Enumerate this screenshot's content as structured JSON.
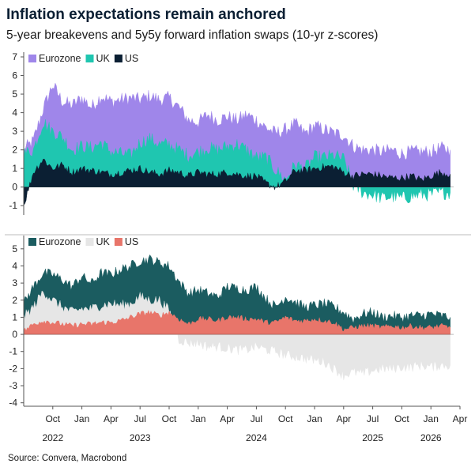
{
  "title": "Inflation expectations remain anchored",
  "subtitle": "5-year breakevens and 5y5y forward inflation swaps (10-yr z-scores)",
  "source": "Source: Convera, Macrobond",
  "colors": {
    "eurozone_top": "#9f86ea",
    "uk_top": "#1fc6b0",
    "us_top": "#0b1f33",
    "eurozone_bottom": "#1b5c60",
    "uk_bottom": "#e6e6e6",
    "us_bottom": "#e8756a",
    "axis": "#555555",
    "divider": "#bdbdbd"
  },
  "x_axis": {
    "month_ticks": [
      "Oct",
      "Jan",
      "Apr",
      "Jul",
      "Oct",
      "Jan",
      "Apr",
      "Jul",
      "Oct",
      "Jan",
      "Apr",
      "Jul",
      "Oct",
      "Jan",
      "Apr"
    ],
    "month_tick_dates": [
      "2022-10",
      "2023-01",
      "2023-04",
      "2023-07",
      "2023-10",
      "2024-01",
      "2024-04",
      "2024-07",
      "2024-10",
      "2025-01",
      "2025-04",
      "2025-07",
      "2025-10",
      "2026-01",
      "2026-04"
    ],
    "year_labels": [
      "2022",
      "2023",
      "2024",
      "2025",
      "2026"
    ],
    "year_label_dates": [
      "2022-10",
      "2023-07",
      "2024-07",
      "2025-07",
      "2026-01"
    ],
    "range": [
      "2022-07",
      "2026-04"
    ]
  },
  "chart_data": [
    {
      "type": "area",
      "panel": "top",
      "ylim": [
        -1.5,
        7
      ],
      "yticks": [
        -1,
        0,
        1,
        2,
        3,
        4,
        5,
        6,
        7
      ],
      "legend_placement": "top-left",
      "x": [
        "2022-07",
        "2022-08",
        "2022-09",
        "2022-10",
        "2022-11",
        "2022-12",
        "2023-01",
        "2023-02",
        "2023-03",
        "2023-04",
        "2023-05",
        "2023-06",
        "2023-07",
        "2023-08",
        "2023-09",
        "2023-10",
        "2023-11",
        "2023-12",
        "2024-01",
        "2024-02",
        "2024-03",
        "2024-04",
        "2024-05",
        "2024-06",
        "2024-07",
        "2024-08",
        "2024-09",
        "2024-10",
        "2024-11",
        "2024-12",
        "2025-01",
        "2025-02",
        "2025-03",
        "2025-04",
        "2025-05",
        "2025-06",
        "2025-07",
        "2025-08",
        "2025-09",
        "2025-10",
        "2025-11",
        "2025-12",
        "2026-01",
        "2026-02",
        "2026-03"
      ],
      "series": [
        {
          "name": "Eurozone",
          "values": [
            2.0,
            2.5,
            4.2,
            5.5,
            4.6,
            4.4,
            4.8,
            4.3,
            4.9,
            4.6,
            4.7,
            4.8,
            4.7,
            4.9,
            4.7,
            4.8,
            4.3,
            3.6,
            3.5,
            3.9,
            3.6,
            3.8,
            3.6,
            3.9,
            3.6,
            3.2,
            2.9,
            3.1,
            3.4,
            2.9,
            3.3,
            3.1,
            2.9,
            2.8,
            2.2,
            2.0,
            2.0,
            1.9,
            2.0,
            1.8,
            1.9,
            1.9,
            1.9,
            2.1,
            2.0
          ]
        },
        {
          "name": "UK",
          "values": [
            1.8,
            2.0,
            3.5,
            3.0,
            2.7,
            2.0,
            2.2,
            2.1,
            2.4,
            1.9,
            1.8,
            1.7,
            2.4,
            2.6,
            2.3,
            2.3,
            2.0,
            1.7,
            1.9,
            2.1,
            2.0,
            2.2,
            2.3,
            2.0,
            1.6,
            1.6,
            0.9,
            0.4,
            1.2,
            1.0,
            1.6,
            1.6,
            1.7,
            1.5,
            0.1,
            -0.3,
            -0.4,
            -0.6,
            -0.5,
            -0.6,
            -0.5,
            -0.4,
            -0.4,
            -0.3,
            -0.3
          ]
        },
        {
          "name": "US",
          "values": [
            -1.0,
            0.8,
            1.5,
            1.0,
            1.2,
            0.8,
            1.0,
            0.9,
            0.8,
            0.7,
            0.8,
            0.9,
            1.0,
            0.8,
            0.7,
            0.9,
            0.8,
            0.6,
            0.8,
            0.7,
            0.7,
            0.8,
            0.7,
            0.6,
            0.6,
            0.2,
            0.0,
            0.3,
            0.9,
            0.9,
            1.0,
            1.1,
            1.1,
            0.8,
            0.6,
            0.7,
            0.7,
            0.6,
            0.5,
            0.5,
            0.6,
            0.4,
            0.6,
            0.8,
            0.7
          ]
        }
      ]
    },
    {
      "type": "area",
      "panel": "bottom",
      "ylim": [
        -4.2,
        5.5
      ],
      "yticks": [
        -4,
        -3,
        -2,
        -1,
        0,
        1,
        2,
        3,
        4,
        5
      ],
      "legend_placement": "top-left",
      "x": [
        "2022-07",
        "2022-08",
        "2022-09",
        "2022-10",
        "2022-11",
        "2022-12",
        "2023-01",
        "2023-02",
        "2023-03",
        "2023-04",
        "2023-05",
        "2023-06",
        "2023-07",
        "2023-08",
        "2023-09",
        "2023-10",
        "2023-11",
        "2023-12",
        "2024-01",
        "2024-02",
        "2024-03",
        "2024-04",
        "2024-05",
        "2024-06",
        "2024-07",
        "2024-08",
        "2024-09",
        "2024-10",
        "2024-11",
        "2024-12",
        "2025-01",
        "2025-02",
        "2025-03",
        "2025-04",
        "2025-05",
        "2025-06",
        "2025-07",
        "2025-08",
        "2025-09",
        "2025-10",
        "2025-11",
        "2025-12",
        "2026-01",
        "2026-02",
        "2026-03"
      ],
      "series": [
        {
          "name": "Eurozone",
          "values": [
            1.8,
            2.8,
            3.6,
            3.5,
            3.2,
            2.8,
            3.4,
            3.0,
            3.6,
            3.5,
            3.8,
            4.0,
            4.3,
            4.4,
            4.2,
            4.0,
            3.1,
            2.4,
            2.6,
            2.4,
            2.2,
            2.8,
            2.7,
            2.6,
            2.8,
            2.1,
            1.6,
            2.2,
            1.9,
            1.6,
            1.7,
            1.8,
            1.6,
            1.3,
            0.9,
            1.2,
            1.3,
            1.0,
            1.1,
            1.0,
            1.1,
            1.1,
            1.2,
            1.1,
            1.0
          ]
        },
        {
          "name": "UK",
          "values": [
            1.0,
            1.6,
            2.5,
            2.0,
            1.6,
            1.3,
            1.5,
            1.5,
            1.7,
            1.8,
            1.7,
            1.8,
            2.2,
            2.0,
            2.0,
            1.4,
            -0.3,
            -0.5,
            -0.5,
            -0.7,
            -0.7,
            -0.8,
            -0.9,
            -0.9,
            -0.7,
            -0.9,
            -1.0,
            -1.2,
            -1.3,
            -1.4,
            -1.5,
            -1.6,
            -2.0,
            -2.4,
            -2.2,
            -2.3,
            -2.1,
            -2.0,
            -2.0,
            -1.9,
            -1.9,
            -1.8,
            -1.9,
            -1.8,
            -1.8
          ]
        },
        {
          "name": "US",
          "values": [
            0.2,
            0.6,
            0.8,
            0.7,
            0.6,
            0.5,
            0.6,
            0.6,
            0.7,
            0.7,
            0.8,
            1.0,
            1.2,
            1.3,
            1.1,
            1.3,
            0.9,
            0.6,
            0.9,
            0.9,
            0.8,
            1.0,
            1.0,
            0.9,
            0.9,
            0.7,
            0.7,
            1.0,
            0.8,
            0.8,
            0.9,
            0.8,
            0.7,
            0.3,
            0.4,
            0.5,
            0.5,
            0.4,
            0.5,
            0.4,
            0.5,
            0.4,
            0.4,
            0.5,
            0.4
          ]
        }
      ]
    }
  ]
}
